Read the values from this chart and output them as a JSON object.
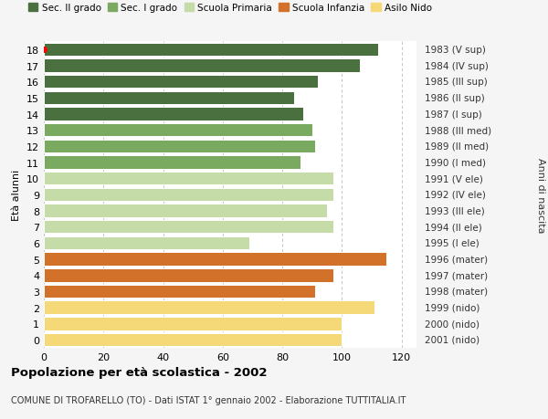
{
  "ages": [
    18,
    17,
    16,
    15,
    14,
    13,
    12,
    11,
    10,
    9,
    8,
    7,
    6,
    5,
    4,
    3,
    2,
    1,
    0
  ],
  "values": [
    112,
    106,
    92,
    84,
    87,
    90,
    91,
    86,
    97,
    97,
    95,
    97,
    69,
    115,
    97,
    91,
    111,
    100,
    100
  ],
  "right_labels": [
    "1983 (V sup)",
    "1984 (IV sup)",
    "1985 (III sup)",
    "1986 (II sup)",
    "1987 (I sup)",
    "1988 (III med)",
    "1989 (II med)",
    "1990 (I med)",
    "1991 (V ele)",
    "1992 (IV ele)",
    "1993 (III ele)",
    "1994 (II ele)",
    "1995 (I ele)",
    "1996 (mater)",
    "1997 (mater)",
    "1998 (mater)",
    "1999 (nido)",
    "2000 (nido)",
    "2001 (nido)"
  ],
  "colors": [
    "#4a7040",
    "#4a7040",
    "#4a7040",
    "#4a7040",
    "#4a7040",
    "#7aaa60",
    "#7aaa60",
    "#7aaa60",
    "#c5dba8",
    "#c5dba8",
    "#c5dba8",
    "#c5dba8",
    "#c5dba8",
    "#d2712a",
    "#d2712a",
    "#d2712a",
    "#f5d878",
    "#f5d878",
    "#f5d878"
  ],
  "legend_labels": [
    "Sec. II grado",
    "Sec. I grado",
    "Scuola Primaria",
    "Scuola Infanzia",
    "Asilo Nido"
  ],
  "legend_colors": [
    "#4a7040",
    "#7aaa60",
    "#c5dba8",
    "#d2712a",
    "#f5d878"
  ],
  "ylabel_left": "Età alunni",
  "ylabel_right": "Anni di nascita",
  "title": "Popolazione per età scolastica - 2002",
  "subtitle": "COMUNE DI TROFARELLO (TO) - Dati ISTAT 1° gennaio 2002 - Elaborazione TUTTITALIA.IT",
  "xlim": [
    0,
    125
  ],
  "xticks": [
    0,
    20,
    40,
    60,
    80,
    100,
    120
  ],
  "background_color": "#f5f5f5",
  "bar_background": "#ffffff",
  "grid_color": "#bbbbbb",
  "red_dot_age": 18
}
